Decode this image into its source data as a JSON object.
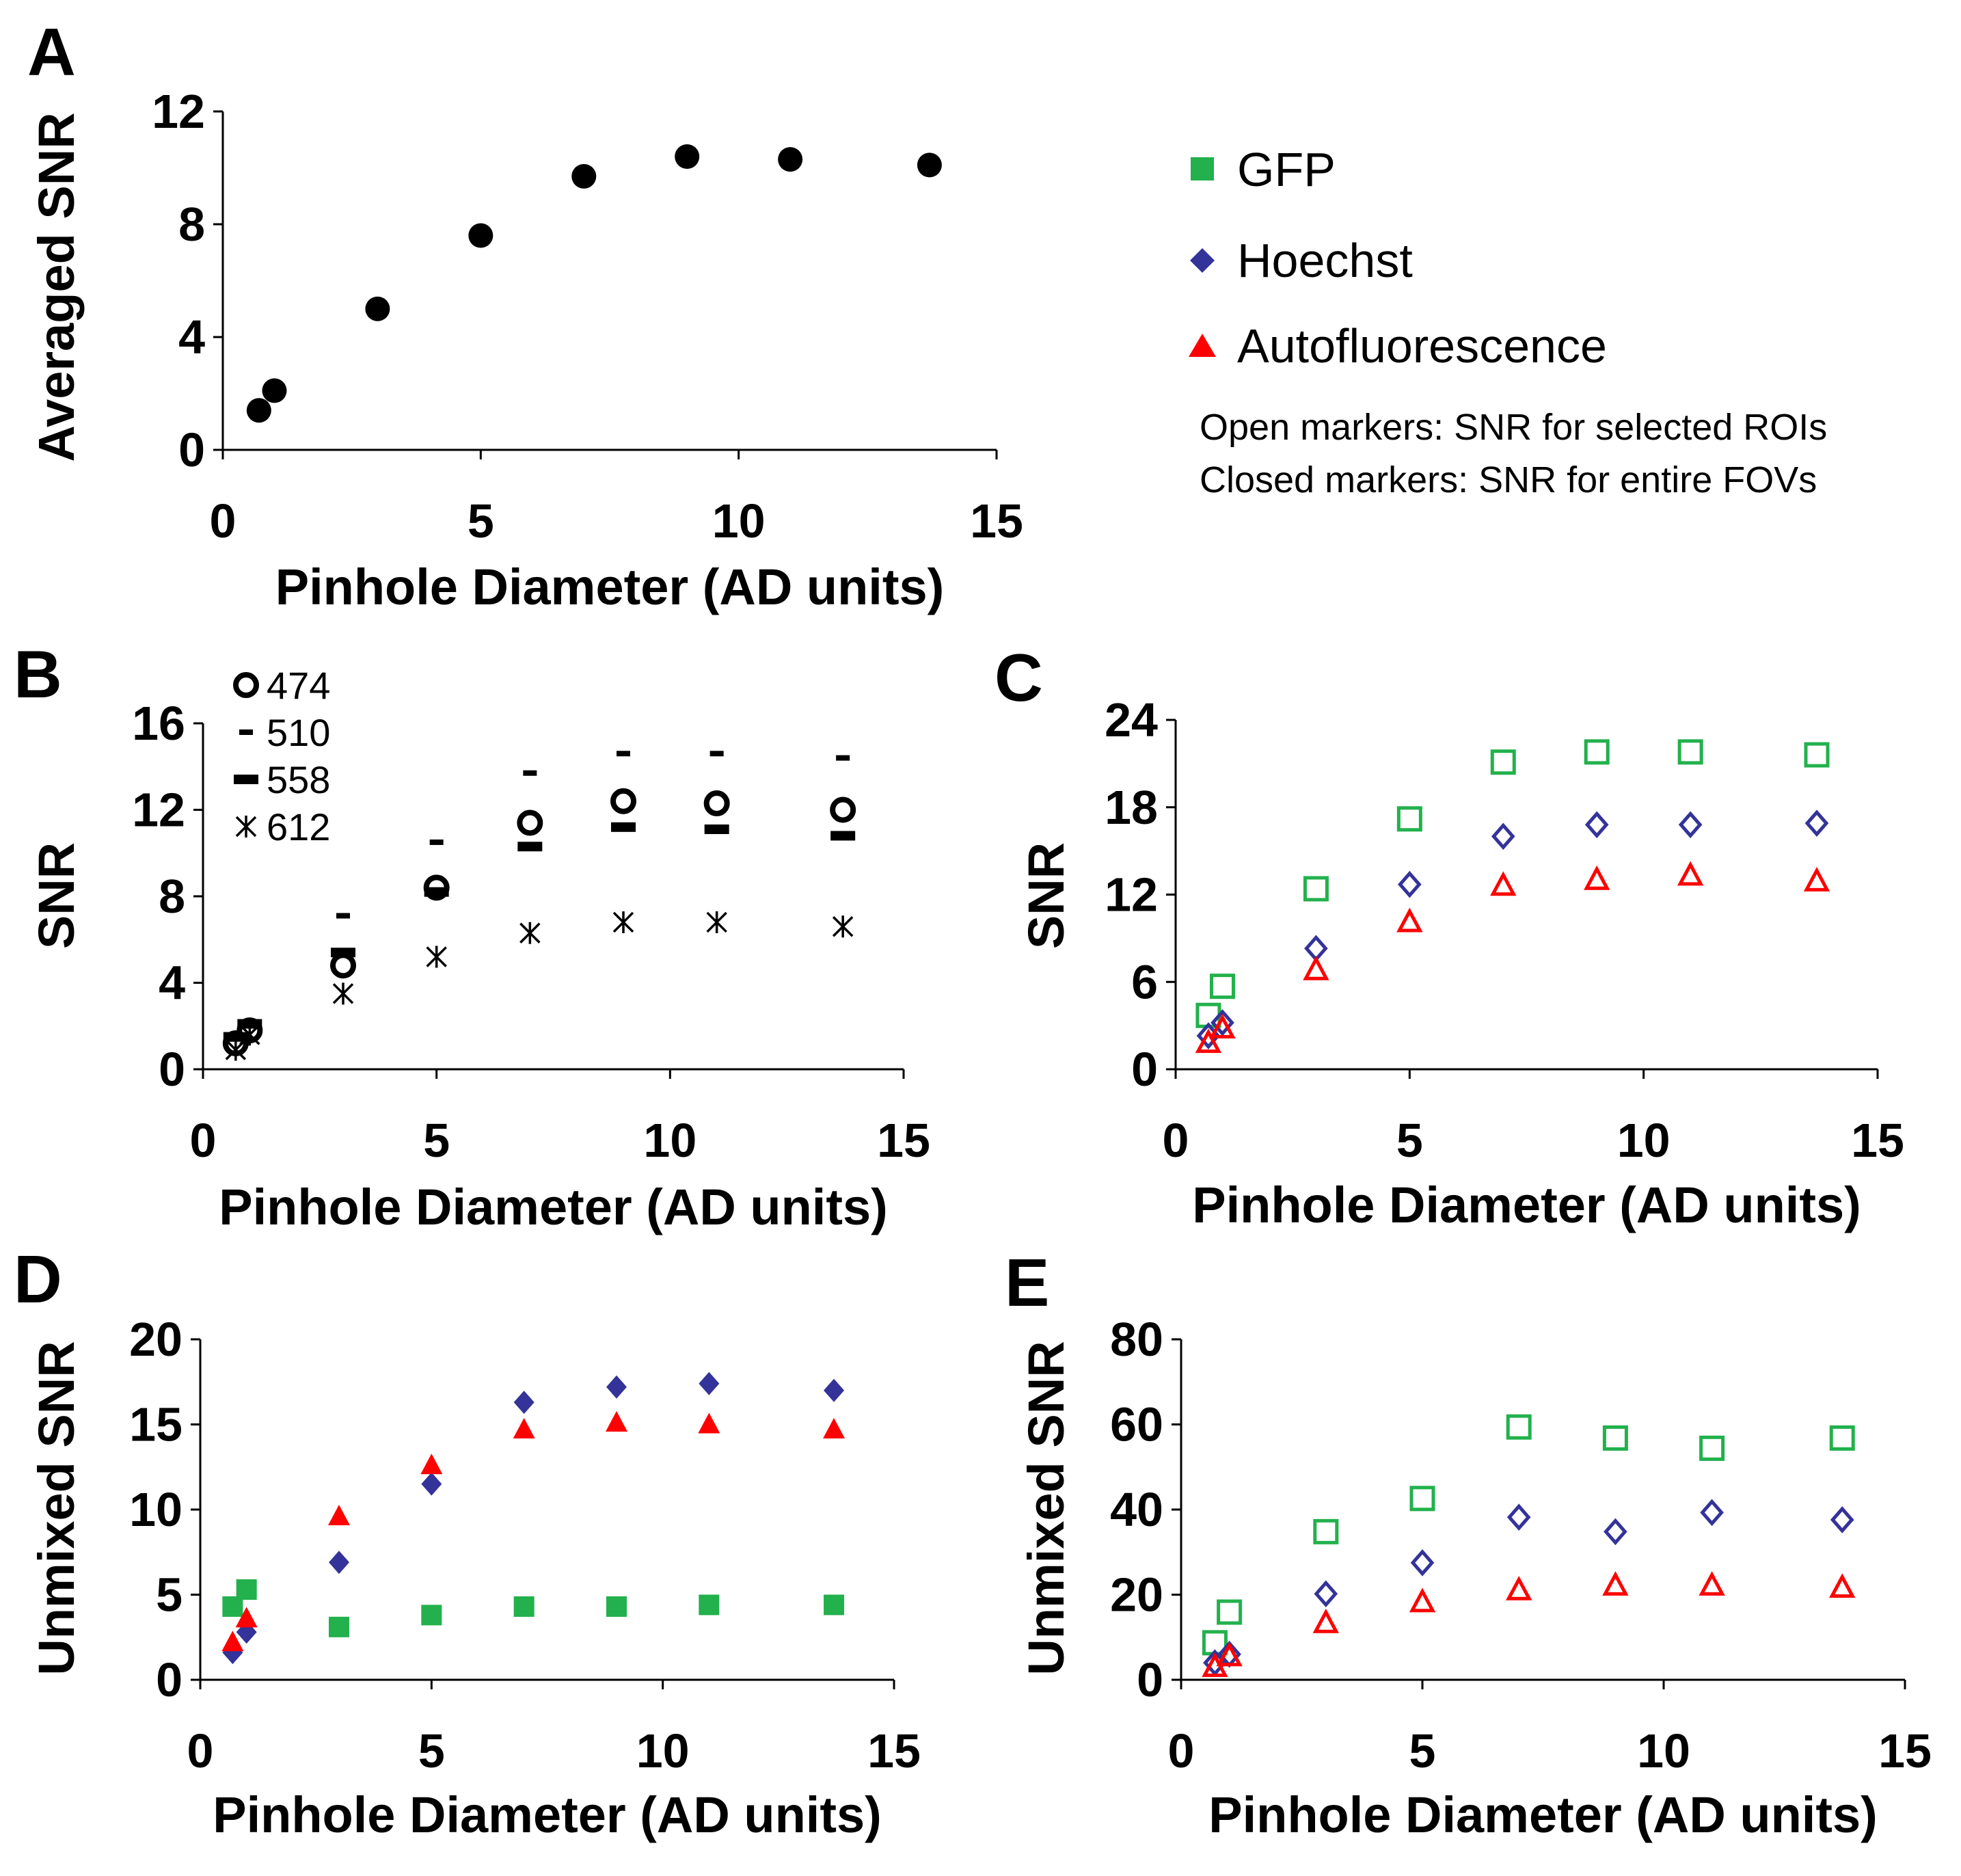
{
  "legend": {
    "entries": [
      {
        "name": "GFP",
        "color": "#22b14c",
        "marker": "square"
      },
      {
        "name": "Hoechst",
        "color": "#33339a",
        "marker": "diamond"
      },
      {
        "name": "Autofluorescence",
        "color": "#ff0000",
        "marker": "triangle"
      }
    ],
    "note_open": "Open markers: SNR for selected ROIs",
    "note_closed": "Closed markers: SNR for entire FOVs"
  },
  "chart_data": [
    {
      "panel": "A",
      "type": "scatter",
      "xlabel": "Pinhole Diameter (AD units)",
      "ylabel": "Averaged SNR",
      "xlim": [
        0,
        15
      ],
      "ylim": [
        0,
        12
      ],
      "xticks": [
        0,
        5,
        10,
        15
      ],
      "yticks": [
        0,
        4,
        8,
        12
      ],
      "series": [
        {
          "name": "Averaged",
          "marker": "circle",
          "filled": true,
          "color": "#000000",
          "x": [
            0.7,
            1.0,
            3.0,
            5.0,
            7.0,
            9.0,
            11.0,
            13.7
          ],
          "y": [
            1.4,
            2.1,
            5.0,
            7.6,
            9.7,
            10.4,
            10.3,
            10.1
          ]
        }
      ]
    },
    {
      "panel": "B",
      "type": "scatter",
      "xlabel": "Pinhole Diameter (AD units)",
      "ylabel": "SNR",
      "xlim": [
        0,
        15
      ],
      "ylim": [
        0,
        16
      ],
      "xticks": [
        0,
        5,
        10,
        15
      ],
      "yticks": [
        0,
        4,
        8,
        12,
        16
      ],
      "legend_position": "top-left",
      "series": [
        {
          "name": "474",
          "marker": "circle-open",
          "color": "#000000",
          "x": [
            0.7,
            1.0,
            3.0,
            5.0,
            7.0,
            9.0,
            11.0,
            13.7
          ],
          "y": [
            1.2,
            1.8,
            4.8,
            8.4,
            11.4,
            12.4,
            12.3,
            12.0
          ]
        },
        {
          "name": "510",
          "marker": "dash-thin",
          "color": "#000000",
          "x": [
            0.7,
            1.0,
            3.0,
            5.0,
            7.0,
            9.0,
            11.0,
            13.7
          ],
          "y": [
            1.4,
            2.2,
            7.1,
            10.5,
            13.7,
            14.6,
            14.6,
            14.4
          ]
        },
        {
          "name": "558",
          "marker": "dash-thick",
          "color": "#000000",
          "x": [
            0.7,
            1.0,
            3.0,
            5.0,
            7.0,
            9.0,
            11.0,
            13.7
          ],
          "y": [
            1.5,
            2.1,
            5.4,
            8.2,
            10.3,
            11.2,
            11.1,
            10.8
          ]
        },
        {
          "name": "612",
          "marker": "asterisk",
          "color": "#000000",
          "x": [
            0.7,
            1.0,
            3.0,
            5.0,
            7.0,
            9.0,
            11.0,
            13.7
          ],
          "y": [
            0.9,
            1.6,
            3.5,
            5.2,
            6.3,
            6.8,
            6.8,
            6.6
          ]
        }
      ]
    },
    {
      "panel": "C",
      "type": "scatter",
      "xlabel": "Pinhole Diameter (AD units)",
      "ylabel": "SNR",
      "xlim": [
        0,
        15
      ],
      "ylim": [
        0,
        24
      ],
      "xticks": [
        0,
        5,
        10,
        15
      ],
      "yticks": [
        0,
        6,
        12,
        18,
        24
      ],
      "series": [
        {
          "name": "GFP",
          "marker": "square-open",
          "color": "#22b14c",
          "x": [
            0.7,
            1.0,
            3.0,
            5.0,
            7.0,
            9.0,
            11.0,
            13.7
          ],
          "y": [
            3.7,
            5.7,
            12.4,
            17.2,
            21.1,
            21.8,
            21.8,
            21.6
          ]
        },
        {
          "name": "Hoechst",
          "marker": "diamond-open",
          "color": "#33339a",
          "x": [
            0.7,
            1.0,
            3.0,
            5.0,
            7.0,
            9.0,
            11.0,
            13.7
          ],
          "y": [
            2.3,
            3.2,
            8.3,
            12.7,
            16.0,
            16.8,
            16.8,
            16.9
          ]
        },
        {
          "name": "Autofluorescence",
          "marker": "triangle-open",
          "color": "#ff0000",
          "x": [
            0.7,
            1.0,
            3.0,
            5.0,
            7.0,
            9.0,
            11.0,
            13.7
          ],
          "y": [
            1.8,
            2.8,
            6.8,
            10.1,
            12.6,
            13.0,
            13.3,
            12.9
          ]
        }
      ]
    },
    {
      "panel": "D",
      "type": "scatter",
      "xlabel": "Pinhole Diameter (AD units)",
      "ylabel": "Unmixed SNR",
      "xlim": [
        0,
        15
      ],
      "ylim": [
        0,
        20
      ],
      "xticks": [
        0,
        5,
        10,
        15
      ],
      "yticks": [
        0,
        5,
        10,
        15,
        20
      ],
      "series": [
        {
          "name": "GFP",
          "marker": "square",
          "color": "#22b14c",
          "x": [
            0.7,
            1.0,
            3.0,
            5.0,
            7.0,
            9.0,
            11.0,
            13.7
          ],
          "y": [
            4.3,
            5.3,
            3.1,
            3.8,
            4.3,
            4.3,
            4.4,
            4.4
          ]
        },
        {
          "name": "Hoechst",
          "marker": "diamond",
          "color": "#33339a",
          "x": [
            0.7,
            1.0,
            3.0,
            5.0,
            7.0,
            9.0,
            11.0,
            13.7
          ],
          "y": [
            1.6,
            2.8,
            6.9,
            11.5,
            16.3,
            17.2,
            17.4,
            17.0
          ]
        },
        {
          "name": "Autofluorescence",
          "marker": "triangle",
          "color": "#ff0000",
          "x": [
            0.7,
            1.0,
            3.0,
            5.0,
            7.0,
            9.0,
            11.0,
            13.7
          ],
          "y": [
            2.2,
            3.6,
            9.6,
            12.6,
            14.7,
            15.1,
            15.0,
            14.7
          ]
        }
      ]
    },
    {
      "panel": "E",
      "type": "scatter",
      "xlabel": "Pinhole Diameter (AD units)",
      "ylabel": "Unmixed SNR",
      "xlim": [
        0,
        15
      ],
      "ylim": [
        0,
        80
      ],
      "xticks": [
        0,
        5,
        10,
        15
      ],
      "yticks": [
        0,
        20,
        40,
        60,
        80
      ],
      "series": [
        {
          "name": "GFP",
          "marker": "square-open",
          "color": "#22b14c",
          "x": [
            0.7,
            1.0,
            3.0,
            5.0,
            7.0,
            9.0,
            11.0,
            13.7
          ],
          "y": [
            8.7,
            15.9,
            34.8,
            42.6,
            59.4,
            56.8,
            54.4,
            56.8
          ]
        },
        {
          "name": "Hoechst",
          "marker": "diamond-open",
          "color": "#33339a",
          "x": [
            0.7,
            1.0,
            3.0,
            5.0,
            7.0,
            9.0,
            11.0,
            13.7
          ],
          "y": [
            4.0,
            6.0,
            20.2,
            27.5,
            38.2,
            34.8,
            39.3,
            37.6
          ]
        },
        {
          "name": "Autofluorescence",
          "marker": "triangle-open",
          "color": "#ff0000",
          "x": [
            0.7,
            1.0,
            3.0,
            5.0,
            7.0,
            9.0,
            11.0,
            13.7
          ],
          "y": [
            3.0,
            5.5,
            13.3,
            18.2,
            21.0,
            22.1,
            22.1,
            21.6
          ]
        }
      ]
    }
  ]
}
